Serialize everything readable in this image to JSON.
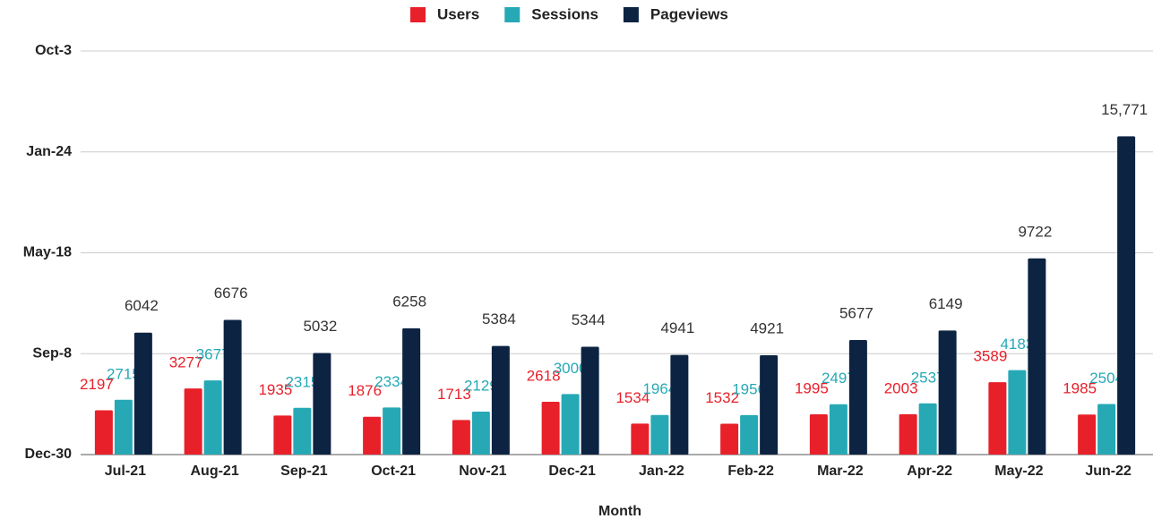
{
  "chart_data": {
    "type": "bar",
    "x_label": "Month",
    "categories": [
      "Jul-21",
      "Aug-21",
      "Sep-21",
      "Oct-21",
      "Nov-21",
      "Dec-21",
      "Jan-22",
      "Feb-22",
      "Mar-22",
      "Apr-22",
      "May-22",
      "Jun-22"
    ],
    "series": [
      {
        "name": "Users",
        "color": "#e8202a",
        "values": [
          2197,
          3277,
          1935,
          1876,
          1713,
          2618,
          1534,
          1532,
          1995,
          2003,
          3589,
          1985
        ]
      },
      {
        "name": "Sessions",
        "color": "#26a9b5",
        "values": [
          2715,
          3677,
          2315,
          2334,
          2129,
          3000,
          1964,
          1956,
          2497,
          2537,
          4183,
          2504
        ]
      },
      {
        "name": "Pageviews",
        "color": "#0c2342",
        "values": [
          6042,
          6676,
          5032,
          6258,
          5384,
          5344,
          4941,
          4921,
          5677,
          6149,
          9722,
          15771
        ],
        "value_labels": [
          "6042",
          "6676",
          "5032",
          "6258",
          "5384",
          "5344",
          "4941",
          "4921",
          "5677",
          "6149",
          "9722",
          "15,771"
        ]
      }
    ],
    "ylim": [
      0,
      20000
    ],
    "yticks": [
      {
        "value": 0,
        "label": "Dec-30"
      },
      {
        "value": 5000,
        "label": "Sep-8"
      },
      {
        "value": 10000,
        "label": "May-18"
      },
      {
        "value": 15000,
        "label": "Jan-24"
      },
      {
        "value": 20000,
        "label": "Oct-3"
      }
    ],
    "grid": true,
    "legend": "top"
  }
}
